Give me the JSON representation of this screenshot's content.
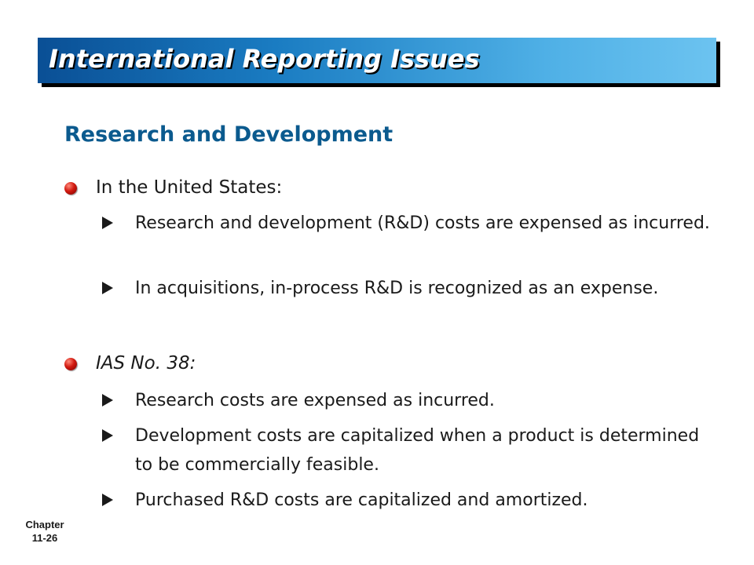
{
  "header": {
    "title": "International Reporting Issues"
  },
  "subtitle": "Research and Development",
  "sections": [
    {
      "heading": "In the United States:",
      "items": [
        "Research and development (R&D) costs are expensed as incurred.",
        "In acquisitions, in-process R&D is recognized as an expense."
      ]
    },
    {
      "heading": "IAS No. 38:",
      "items": [
        "Research costs are expensed as incurred.",
        "Development costs are capitalized when a product is determined to be commercially feasible.",
        "Purchased R&D costs are capitalized and amortized."
      ]
    }
  ],
  "footer": {
    "chapter_label": "Chapter",
    "page_label": "11-26"
  },
  "colors": {
    "title_bar_dark": "#0a4f95",
    "title_bar_light": "#6cc3f0",
    "subtitle": "#0b5a8e",
    "bullet": "#d21a10"
  },
  "icons": {
    "level1": "red-sphere-bullet",
    "level2": "arrow-bullet"
  }
}
